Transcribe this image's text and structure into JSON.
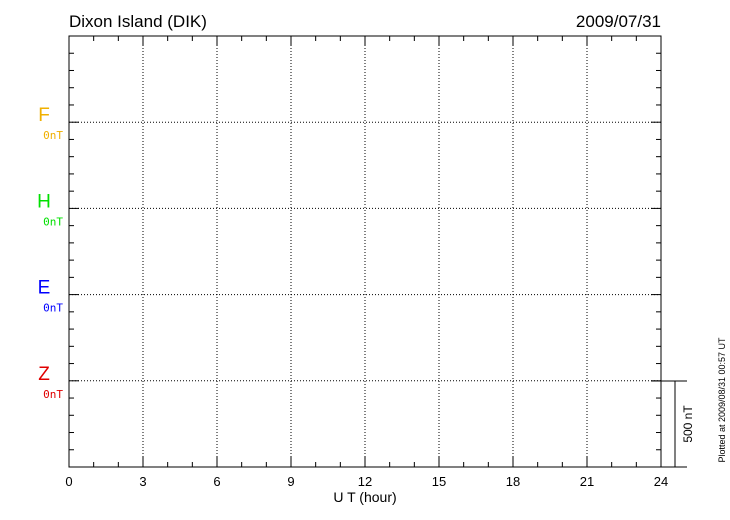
{
  "chart_data": {
    "type": "line",
    "title": "Dixon Island (DIK)",
    "date": "2009/07/31",
    "xlabel": "U T (hour)",
    "xlim": [
      0,
      24
    ],
    "xticks": [
      "0",
      "3",
      "6",
      "9",
      "12",
      "15",
      "18",
      "21",
      "24"
    ],
    "grid": true,
    "series": [
      {
        "name": "F",
        "baseline_label": "0nT",
        "color": "#f0b000",
        "values": []
      },
      {
        "name": "H",
        "baseline_label": "0nT",
        "color": "#00e000",
        "values": []
      },
      {
        "name": "E",
        "baseline_label": "0nT",
        "color": "#0000ff",
        "values": []
      },
      {
        "name": "Z",
        "baseline_label": "0nT",
        "color": "#e00000",
        "values": []
      }
    ],
    "scale_bar": "500 nT",
    "footer": "Plotted at 2009/08/31 00:57 UT"
  }
}
